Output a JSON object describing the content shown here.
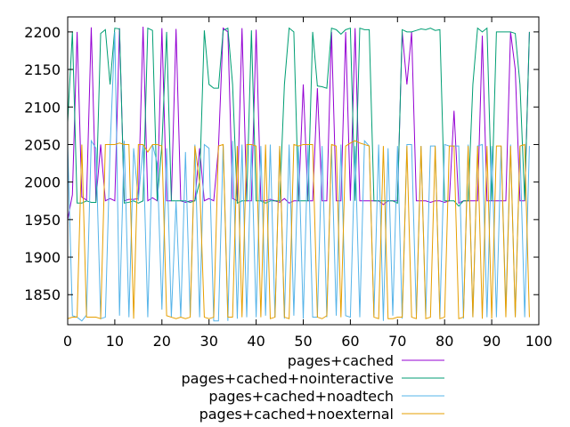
{
  "chart_data": {
    "type": "line",
    "title": "",
    "xlabel": "",
    "ylabel": "",
    "xlim": [
      0,
      100
    ],
    "ylim": [
      1810,
      2220
    ],
    "xticks": [
      0,
      10,
      20,
      30,
      40,
      50,
      60,
      70,
      80,
      90,
      100
    ],
    "yticks": [
      1850,
      1900,
      1950,
      2000,
      2050,
      2100,
      2150,
      2200
    ],
    "grid": false,
    "legend_position": "bottom-center",
    "series": [
      {
        "name": "pages+cached",
        "color": "#9400d3",
        "values": [
          1950,
          1983,
          2200,
          1980,
          1976,
          2206,
          1975,
          2050,
          1975,
          1978,
          1975,
          2205,
          1975,
          1977,
          1977,
          1978,
          2207,
          1975,
          1979,
          1975,
          2205,
          1975,
          1975,
          2204,
          1975,
          1973,
          1975,
          1975,
          2045,
          1975,
          1978,
          1975,
          2045,
          2205,
          2200,
          1978,
          1975,
          2205,
          1975,
          1975,
          2203,
          1975,
          1975,
          1977,
          1975,
          1973,
          1978,
          1972,
          1975,
          1975,
          2130,
          1975,
          1975,
          2125,
          1975,
          1975,
          2200,
          1975,
          1975,
          2200,
          1975,
          2205,
          1975,
          1975,
          1975,
          1975,
          1975,
          1970,
          1975,
          1975,
          1975,
          2200,
          2130,
          2200,
          1975,
          1975,
          1975,
          1973,
          1975,
          1975,
          1973,
          1975,
          2095,
          1972,
          1975,
          1975,
          1975,
          1975,
          2195,
          1975,
          1975,
          1975,
          1975,
          1975,
          2200,
          2150,
          1975,
          1975,
          2200
        ]
      },
      {
        "name": "pages+cached+nointeractive",
        "color": "#009e73",
        "values": [
          2080,
          2200,
          1972,
          1972,
          1975,
          1973,
          1973,
          2198,
          2203,
          2130,
          2205,
          2204,
          1972,
          1973,
          1975,
          1972,
          1975,
          2205,
          2202,
          1975,
          2050,
          2200,
          1975,
          1975,
          1975,
          1975,
          1973,
          1975,
          2000,
          2202,
          2130,
          2125,
          2125,
          2202,
          2205,
          2130,
          1972,
          1975,
          1975,
          2202,
          1975,
          1975,
          1972,
          1975,
          1975,
          1975,
          2130,
          2205,
          2200,
          1975,
          1975,
          1975,
          2200,
          2128,
          2127,
          2125,
          2205,
          2203,
          2197,
          2203,
          2205,
          1975,
          2205,
          2203,
          2203,
          1975,
          1975,
          1975,
          1975,
          1975,
          1972,
          2203,
          2200,
          2200,
          2202,
          2204,
          2203,
          2205,
          2202,
          2203,
          1975,
          1975,
          1975,
          1968,
          1975,
          1975,
          2130,
          2205,
          2200,
          2205,
          1975,
          2200,
          2200,
          2200,
          2200,
          2198,
          2130,
          1975,
          2200
        ]
      },
      {
        "name": "pages+cached+noadtech",
        "color": "#56b4e9",
        "values": [
          2050,
          1822,
          1820,
          1815,
          1823,
          2055,
          2045,
          1818,
          1820,
          2045,
          2200,
          1822,
          2055,
          1820,
          2045,
          1975,
          2050,
          1820,
          2050,
          2025,
          1830,
          2045,
          1820,
          1975,
          1820,
          2040,
          1822,
          2050,
          1820,
          2050,
          2045,
          1815,
          1815,
          2050,
          1815,
          2055,
          1818,
          2050,
          1820,
          2050,
          1820,
          2048,
          1822,
          2050,
          1820,
          2048,
          1818,
          2050,
          1822,
          2048,
          1818,
          2050,
          1820,
          1820,
          2048,
          1820,
          2048,
          1822,
          2050,
          1822,
          1820,
          2048,
          1820,
          2055,
          2048,
          1822,
          2050,
          1815,
          2045,
          1822,
          2048,
          1818,
          2050,
          2050,
          1822,
          2048,
          1822,
          2048,
          2048,
          1820,
          2050,
          2048,
          2048,
          2048,
          1818,
          2050,
          1820,
          2048,
          2050,
          1820,
          2048,
          1820,
          2048,
          1830,
          2050,
          1820,
          2048,
          1820,
          2048
        ]
      },
      {
        "name": "pages+cached+noexternal",
        "color": "#e69f00",
        "values": [
          1818,
          1820,
          1820,
          2050,
          1820,
          1820,
          1820,
          1818,
          2050,
          2050,
          2050,
          2052,
          2050,
          2050,
          1818,
          2050,
          2050,
          2040,
          2050,
          2050,
          2048,
          1822,
          1820,
          1818,
          1820,
          1818,
          1820,
          2048,
          2000,
          1820,
          1818,
          1820,
          2048,
          2050,
          1820,
          1820,
          2048,
          1820,
          2050,
          2050,
          2048,
          1820,
          2050,
          1818,
          1820,
          2048,
          1820,
          1818,
          2050,
          2048,
          2050,
          2050,
          2050,
          1820,
          1818,
          1822,
          2050,
          2048,
          1820,
          2048,
          2052,
          2055,
          2052,
          2050,
          2048,
          1820,
          1818,
          2048,
          1818,
          1818,
          1820,
          1820,
          2048,
          1820,
          1818,
          2048,
          1818,
          1820,
          2048,
          1818,
          1820,
          2048,
          2048,
          1818,
          1820,
          2048,
          1820,
          2048,
          1818,
          2048,
          1818,
          2048,
          2048,
          1820,
          2048,
          1820,
          2048,
          2050,
          1820
        ]
      }
    ]
  }
}
